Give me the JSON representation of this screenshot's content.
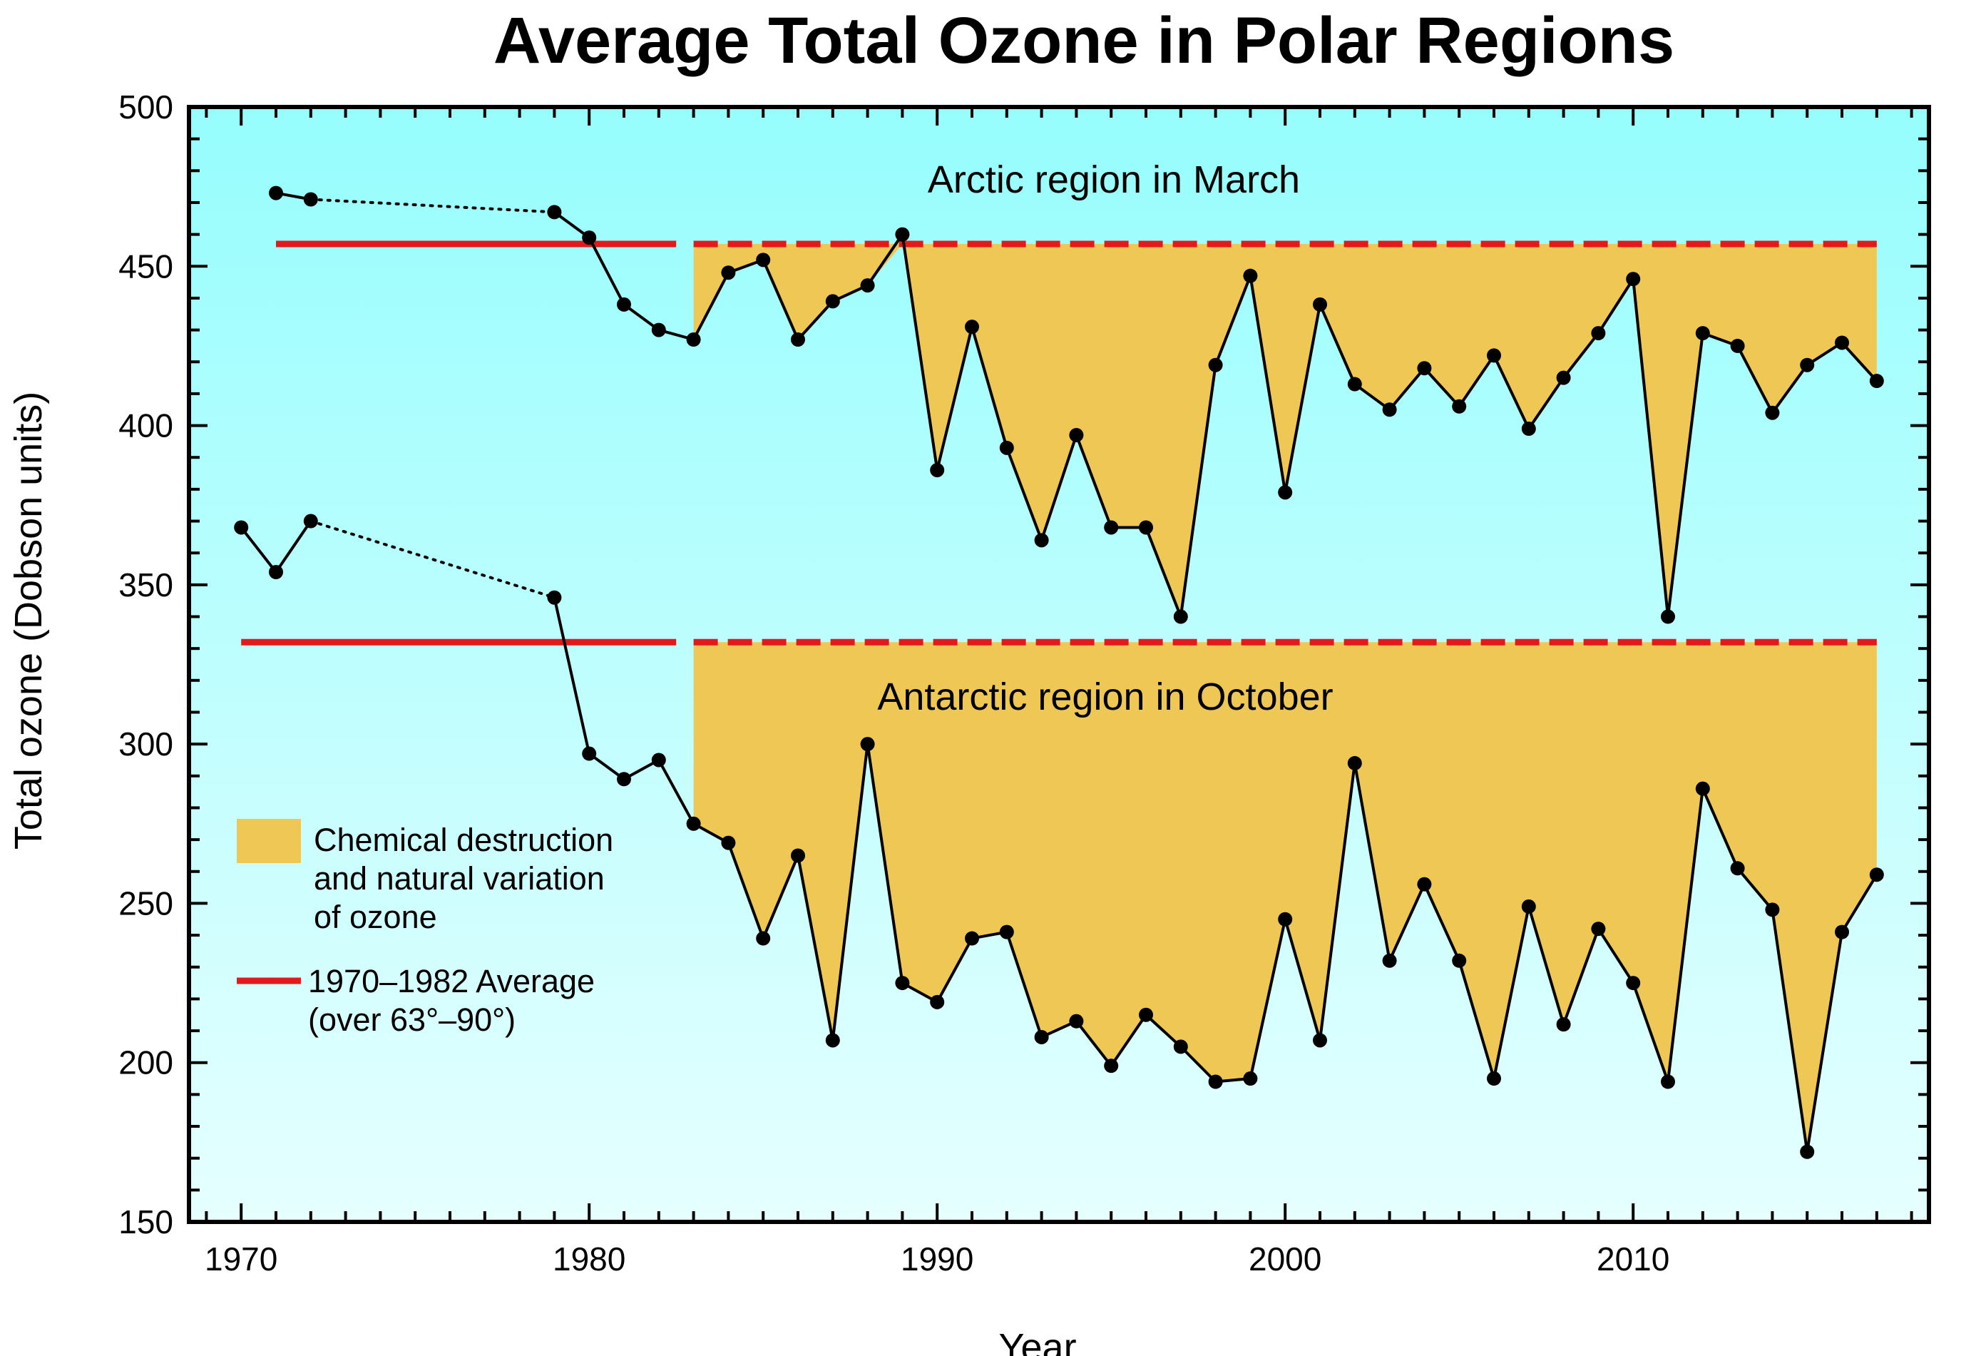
{
  "chart_data": {
    "type": "line",
    "title": "Average Total Ozone in Polar Regions",
    "xlabel": "Year",
    "ylabel": "Total ozone (Dobson units)",
    "xlim": [
      1968.5,
      2018.5
    ],
    "ylim": [
      150,
      500
    ],
    "x_ticks": [
      1970,
      1980,
      1990,
      2000,
      2010
    ],
    "y_ticks": [
      150,
      200,
      250,
      300,
      350,
      400,
      450,
      500
    ],
    "grid": false,
    "colors": {
      "background_top": "#96fdfd",
      "background_bottom": "#e6ffff",
      "fill": "#efc755",
      "average_line": "#e3191b",
      "series_line": "#000000"
    },
    "series": [
      {
        "name": "Arctic region in March",
        "baseline_1970_1982": 457,
        "early_points": [
          [
            1971,
            473
          ],
          [
            1972,
            471
          ]
        ],
        "gap_dotted": [
          [
            1972,
            471
          ],
          [
            1979,
            467
          ]
        ],
        "points": [
          [
            1979,
            467
          ],
          [
            1980,
            459
          ],
          [
            1981,
            438
          ],
          [
            1982,
            430
          ],
          [
            1983,
            427
          ],
          [
            1984,
            448
          ],
          [
            1985,
            452
          ],
          [
            1986,
            427
          ],
          [
            1987,
            439
          ],
          [
            1988,
            444
          ],
          [
            1989,
            460
          ],
          [
            1990,
            386
          ],
          [
            1991,
            431
          ],
          [
            1992,
            393
          ],
          [
            1993,
            364
          ],
          [
            1994,
            397
          ],
          [
            1995,
            368
          ],
          [
            1996,
            368
          ],
          [
            1997,
            340
          ],
          [
            1998,
            419
          ],
          [
            1999,
            447
          ],
          [
            2000,
            379
          ],
          [
            2001,
            438
          ],
          [
            2002,
            413
          ],
          [
            2003,
            405
          ],
          [
            2004,
            418
          ],
          [
            2005,
            406
          ],
          [
            2006,
            422
          ],
          [
            2007,
            399
          ],
          [
            2008,
            415
          ],
          [
            2009,
            429
          ],
          [
            2010,
            446
          ],
          [
            2011,
            340
          ],
          [
            2012,
            429
          ],
          [
            2013,
            425
          ],
          [
            2014,
            404
          ],
          [
            2015,
            419
          ],
          [
            2016,
            426
          ],
          [
            2017,
            414
          ]
        ]
      },
      {
        "name": "Antarctic region in October",
        "baseline_1970_1982": 332,
        "early_points": [
          [
            1970,
            368
          ],
          [
            1971,
            354
          ],
          [
            1972,
            370
          ]
        ],
        "gap_dotted": [
          [
            1972,
            370
          ],
          [
            1979,
            346
          ]
        ],
        "points": [
          [
            1979,
            346
          ],
          [
            1980,
            297
          ],
          [
            1981,
            289
          ],
          [
            1982,
            295
          ],
          [
            1983,
            275
          ],
          [
            1984,
            269
          ],
          [
            1985,
            239
          ],
          [
            1986,
            265
          ],
          [
            1987,
            207
          ],
          [
            1988,
            300
          ],
          [
            1989,
            225
          ],
          [
            1990,
            219
          ],
          [
            1991,
            239
          ],
          [
            1992,
            241
          ],
          [
            1993,
            208
          ],
          [
            1994,
            213
          ],
          [
            1995,
            199
          ],
          [
            1996,
            215
          ],
          [
            1997,
            205
          ],
          [
            1998,
            194
          ],
          [
            1999,
            195
          ],
          [
            2000,
            245
          ],
          [
            2001,
            207
          ],
          [
            2002,
            294
          ],
          [
            2003,
            232
          ],
          [
            2004,
            256
          ],
          [
            2005,
            232
          ],
          [
            2006,
            195
          ],
          [
            2007,
            249
          ],
          [
            2008,
            212
          ],
          [
            2009,
            242
          ],
          [
            2010,
            225
          ],
          [
            2011,
            194
          ],
          [
            2012,
            286
          ],
          [
            2013,
            261
          ],
          [
            2014,
            248
          ],
          [
            2015,
            172
          ],
          [
            2016,
            241
          ],
          [
            2017,
            259
          ]
        ]
      }
    ],
    "average_solid_range": [
      1971,
      1982.5
    ],
    "average_dashed_range": [
      1983,
      2017
    ],
    "legend": {
      "position": "left-middle",
      "entries": [
        {
          "kind": "fill",
          "lines": [
            "Chemical destruction",
            "and natural variation",
            "of ozone"
          ]
        },
        {
          "kind": "line",
          "lines": [
            "1970–1982 Average",
            "(over 63°–90°)"
          ]
        }
      ]
    }
  }
}
